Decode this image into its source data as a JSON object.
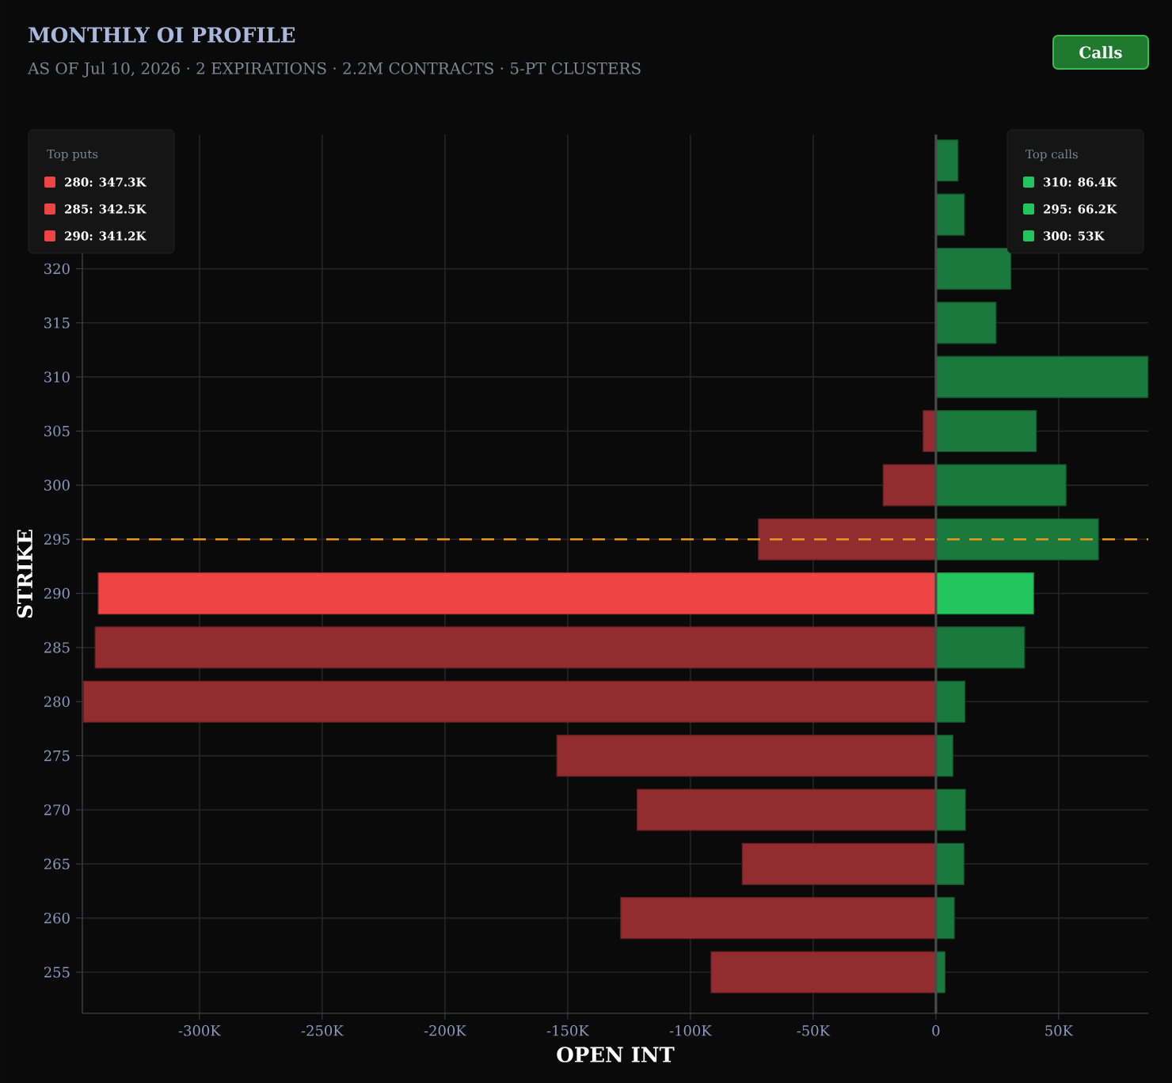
{
  "chart_data": {
    "type": "bar",
    "orientation": "horizontal",
    "title": "MONTHLY OI PROFILE",
    "stacked": true,
    "subtitle": "AS OF Jul 10, 2026 · 2 EXPIRATIONS · 2.2M CONTRACTS · 5-PT CLUSTERS",
    "xlabel": "OPEN INT",
    "ylabel": "STRIKE",
    "x": [
      330,
      325,
      320,
      315,
      310,
      305,
      300,
      295,
      290,
      285,
      280,
      275,
      270,
      265,
      260,
      255
    ],
    "series": [
      {
        "color": "#ef4444",
        "colors": [
          "#922c2e",
          "#922c2e",
          "#922c2e",
          "#922c2e",
          "#922c2e",
          "#922c2e",
          "#922c2e",
          "#922c2e",
          "#ef4444",
          "#922c2e",
          "#922c2e",
          "#922c2e",
          "#922c2e",
          "#922c2e",
          "#922c2e",
          "#922c2e"
        ],
        "values": [
          null,
          null,
          null,
          null,
          null,
          -5200,
          -21500,
          -72300,
          -341200,
          -342500,
          -347300,
          -154400,
          -121700,
          -78900,
          -128400,
          -91600
        ]
      },
      {
        "color": "#22c55e",
        "colors": [
          "#1a7a3e",
          "#1a7a3e",
          "#1a7a3e",
          "#1a7a3e",
          "#1a7a3e",
          "#1a7a3e",
          "#1a7a3e",
          "#1a7a3e",
          "#22c55e",
          "#1a7a3e",
          "#1a7a3e",
          "#1a7a3e",
          "#1a7a3e",
          "#1a7a3e",
          "#1a7a3e",
          "#1a7a3e"
        ],
        "values": [
          9000,
          11600,
          30500,
          24500,
          86400,
          40900,
          53000,
          66200,
          39800,
          36100,
          11800,
          6900,
          12000,
          11400,
          7500,
          3700
        ]
      }
    ],
    "xlim": [
      -347700,
      86500
    ],
    "xticks": [
      {
        "value": -300000,
        "label": "-300K"
      },
      {
        "value": -250000,
        "label": "-250K"
      },
      {
        "value": -200000,
        "label": "-200K"
      },
      {
        "value": -150000,
        "label": "-150K"
      },
      {
        "value": -100000,
        "label": "-100K"
      },
      {
        "value": -50000,
        "label": "-50K"
      },
      0,
      {
        "value": 50000,
        "label": "50K"
      }
    ],
    "ylim": [
      251.2,
      332.4
    ],
    "yticks": [
      255,
      260,
      265,
      270,
      275,
      280,
      285,
      290,
      295,
      300,
      305,
      310,
      315,
      320
    ],
    "ref_lines": [
      {
        "axis": "y",
        "value": 295,
        "color": "#e69a1c",
        "line_style": "dashed"
      },
      {
        "axis": "x",
        "value": 0,
        "color": "#4a4a4a",
        "line_style": "solid"
      }
    ],
    "grid": true,
    "annotations": [
      "Top puts",
      "280: 347.3K",
      "285: 342.5K",
      "290: 341.2K",
      "Top calls",
      "310: 86.4K",
      "295: 66.2K",
      "300: 53K",
      "Calls"
    ]
  }
}
